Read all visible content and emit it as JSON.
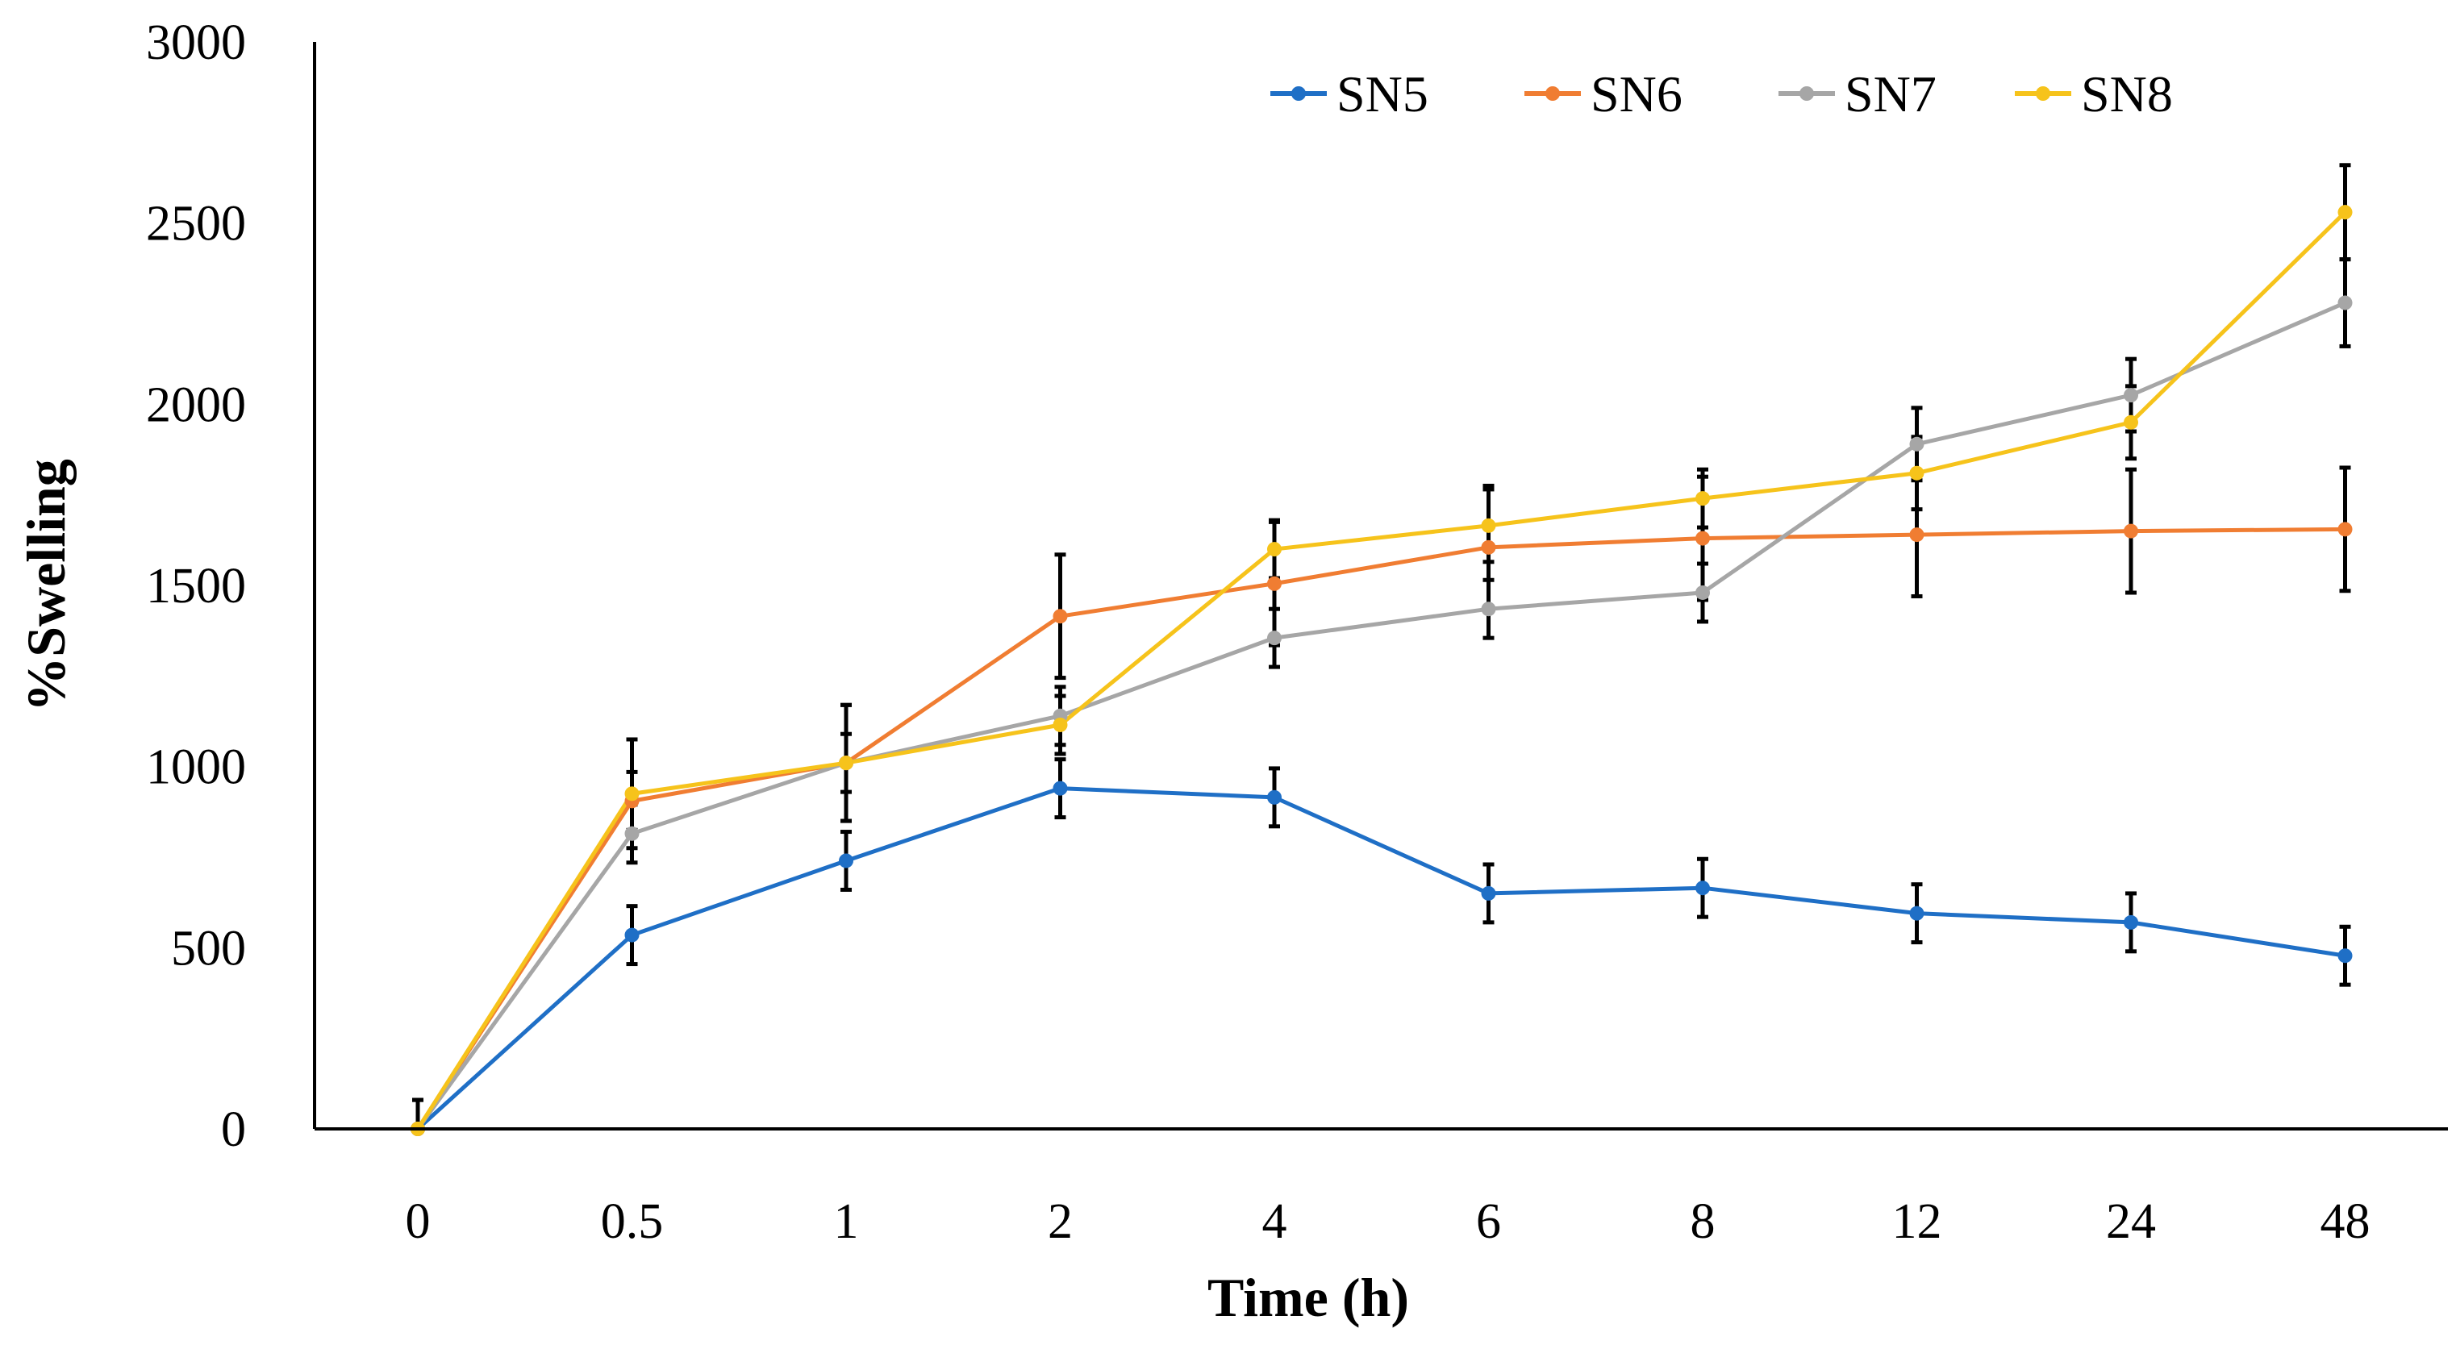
{
  "chart_data": {
    "type": "line",
    "title": "",
    "xlabel": "Time (h)",
    "ylabel": "%Swelling",
    "categories": [
      "0",
      "0.5",
      "1",
      "2",
      "4",
      "6",
      "8",
      "12",
      "24",
      "48"
    ],
    "ylim": [
      0,
      3000
    ],
    "yticks": [
      "0",
      "500",
      "1000",
      "1500",
      "2000",
      "2500",
      "3000"
    ],
    "grid": false,
    "legend_position": "top",
    "series": [
      {
        "name": "SN5",
        "color": "#1f6fc6",
        "values": [
          0,
          535,
          740,
          940,
          915,
          650,
          665,
          595,
          570,
          478
        ],
        "errors": [
          80,
          80,
          80,
          80,
          80,
          80,
          80,
          80,
          80,
          80
        ]
      },
      {
        "name": "SN6",
        "color": "#f07d32",
        "values": [
          0,
          905,
          1010,
          1415,
          1505,
          1605,
          1630,
          1640,
          1650,
          1655
        ],
        "errors": [
          80,
          80,
          160,
          170,
          170,
          170,
          170,
          170,
          170,
          170
        ]
      },
      {
        "name": "SN7",
        "color": "#a6a6a6",
        "values": [
          0,
          815,
          1010,
          1140,
          1355,
          1435,
          1480,
          1890,
          2025,
          2280
        ],
        "errors": [
          80,
          80,
          80,
          80,
          80,
          80,
          80,
          100,
          100,
          120
        ]
      },
      {
        "name": "SN8",
        "color": "#f6c31b",
        "values": [
          0,
          925,
          1010,
          1115,
          1600,
          1665,
          1740,
          1810,
          1950,
          2530
        ],
        "errors": [
          80,
          150,
          160,
          80,
          80,
          100,
          80,
          100,
          100,
          130
        ]
      }
    ]
  }
}
